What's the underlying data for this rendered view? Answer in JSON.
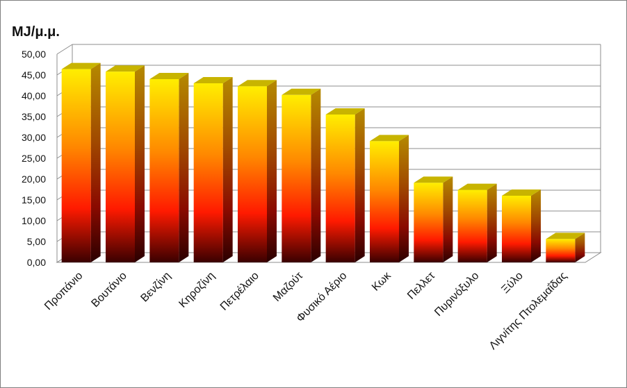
{
  "chart_data": {
    "type": "bar",
    "ylabel": "MJ/μ.μ.",
    "ylim": [
      0,
      50
    ],
    "ytick_labels": [
      "0,00",
      "5,00",
      "10,00",
      "15,00",
      "20,00",
      "25,00",
      "30,00",
      "35,00",
      "40,00",
      "45,00",
      "50,00"
    ],
    "categories": [
      "Προπάνιο",
      "Βουτάνιο",
      "Βενζίνη",
      "Κηροζίνη",
      "Πετρέλαιο",
      "Μαζούτ",
      "Φυσικό Αέριο",
      "Κωκ",
      "Πελλετ",
      "Πυρινόξυλο",
      "Ξύλο",
      "Λιγνίτης Πτολεμαΐδας"
    ],
    "values": [
      46.4,
      45.8,
      44.0,
      43.0,
      42.3,
      40.2,
      35.5,
      29.1,
      19.1,
      17.4,
      16.0,
      5.6
    ],
    "grid": true,
    "style": "3d-bars-gradient",
    "colors": {
      "top": "#ffee00",
      "mid": "#ff8800",
      "red": "#ff1a00",
      "bottom": "#3a0000",
      "cap": "#c8b400",
      "side": "#5a0000"
    }
  }
}
